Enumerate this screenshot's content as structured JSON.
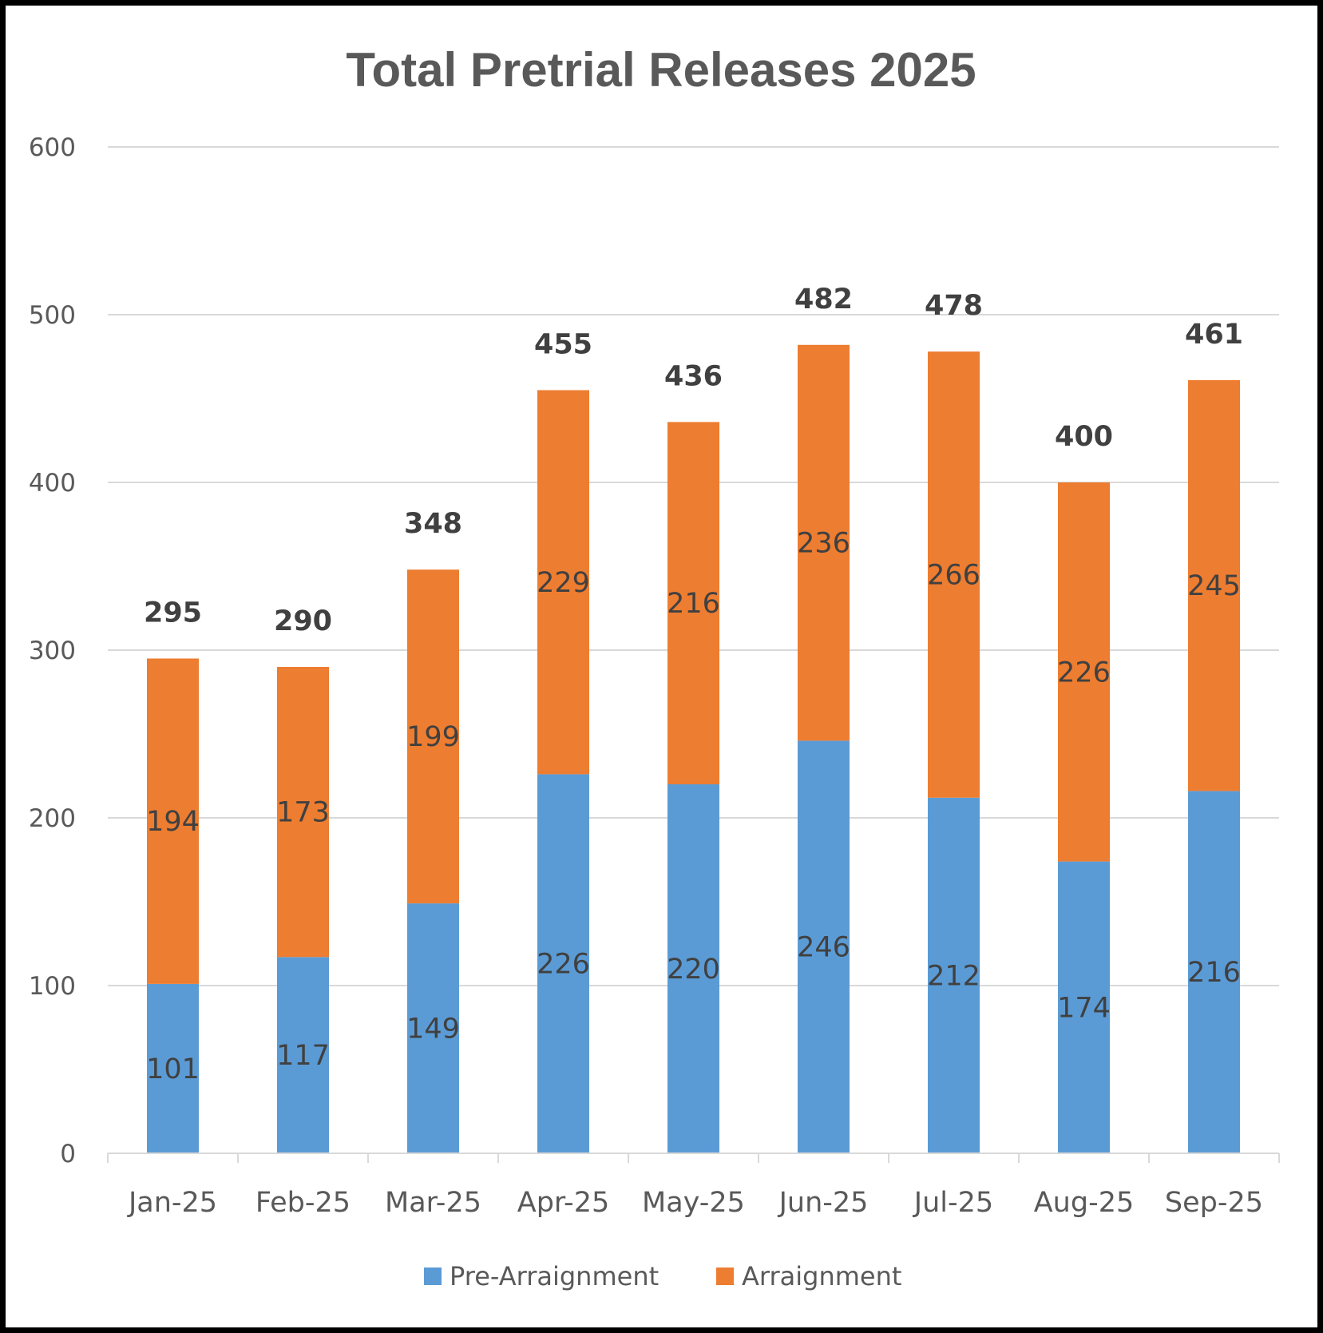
{
  "chart_data": {
    "type": "bar",
    "stacked": true,
    "title": "Total Pretrial Releases 2025",
    "categories": [
      "Jan-25",
      "Feb-25",
      "Mar-25",
      "Apr-25",
      "May-25",
      "Jun-25",
      "Jul-25",
      "Aug-25",
      "Sep-25"
    ],
    "series": [
      {
        "name": "Pre-Arraignment",
        "color": "#5B9BD5",
        "values": [
          101,
          117,
          149,
          226,
          220,
          246,
          212,
          174,
          216
        ]
      },
      {
        "name": "Arraignment",
        "color": "#ED7D31",
        "values": [
          194,
          173,
          199,
          229,
          216,
          236,
          266,
          226,
          245
        ]
      }
    ],
    "totals": [
      295,
      290,
      348,
      455,
      436,
      482,
      478,
      400,
      461
    ],
    "ylim": [
      0,
      600
    ],
    "yticks": [
      0,
      100,
      200,
      300,
      400,
      500,
      600
    ],
    "xlabel": "",
    "ylabel": "",
    "grid": true,
    "legend_position": "bottom"
  }
}
